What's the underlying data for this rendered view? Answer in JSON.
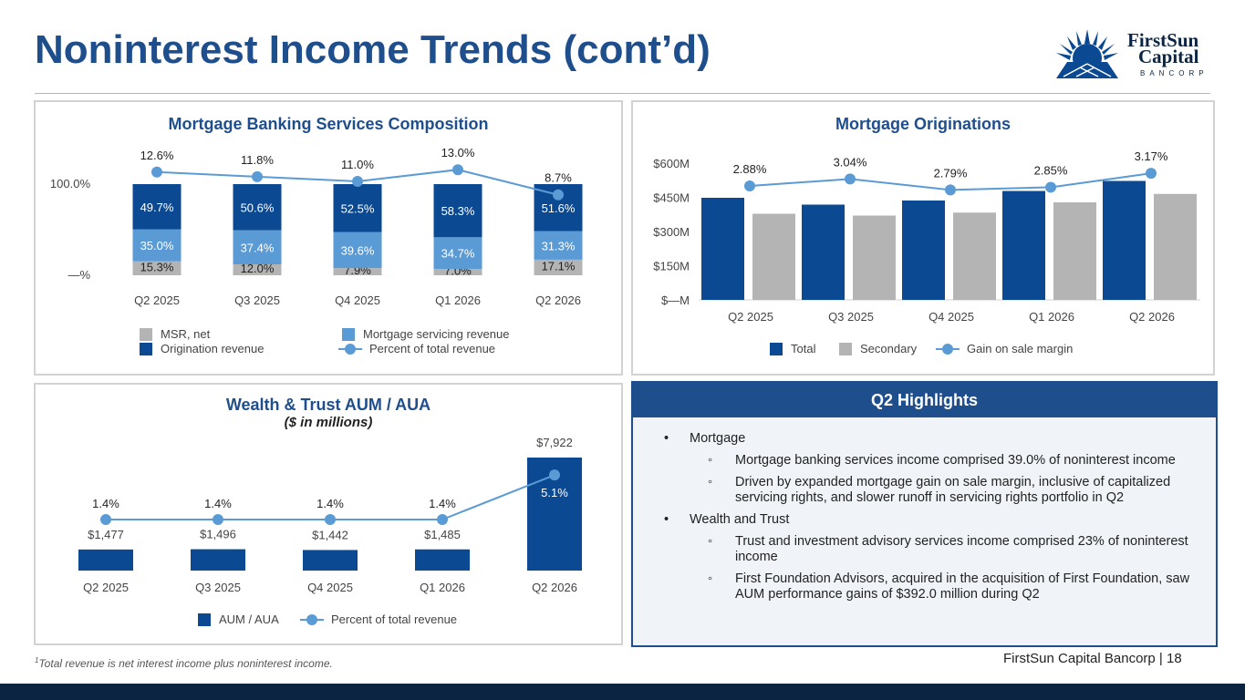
{
  "page": {
    "title": "Noninterest Income Trends (cont’d)",
    "logo": {
      "line1": "FirstSun",
      "line2": "Capital",
      "line3": "BANCORP"
    },
    "footnote_mark": "1",
    "footnote": "Total revenue is net interest income plus noninterest income.",
    "page_footer": "FirstSun Capital Bancorp  |  18"
  },
  "colors": {
    "navy": "#0b4a93",
    "light_blue": "#5b9bd5",
    "gray": "#b4b4b4",
    "title_blue": "#1f4e8c",
    "dark_bar": "#0b2442"
  },
  "highlights": {
    "title": "Q2 Highlights",
    "items": [
      {
        "text": "Mortgage",
        "sub": [
          "Mortgage banking services income comprised 39.0% of noninterest income",
          "Driven by expanded mortgage gain on sale margin, inclusive of capitalized servicing rights, and slower runoff in servicing rights portfolio in Q2"
        ]
      },
      {
        "text": "Wealth and Trust",
        "sub": [
          "Trust and investment advisory services income comprised 23% of noninterest income",
          "First Foundation Advisors, acquired in the acquisition of First Foundation, saw AUM performance gains of $392.0 million during Q2"
        ]
      }
    ]
  },
  "chart_data": [
    {
      "type": "bar",
      "stacked": true,
      "title": "Mortgage Banking Services Composition",
      "categories": [
        "Q2 2025",
        "Q3 2025",
        "Q4 2025",
        "Q1 2026",
        "Q2 2026"
      ],
      "yticks": [
        "100.0%",
        "—%"
      ],
      "series": [
        {
          "name": "MSR, net",
          "values": [
            15.3,
            12.0,
            7.9,
            7.0,
            17.1
          ],
          "labels": [
            "15.3%",
            "12.0%",
            "7.9%",
            "7.0%",
            "17.1%"
          ],
          "color": "#b4b4b4"
        },
        {
          "name": "Mortgage servicing revenue",
          "values": [
            35.0,
            37.4,
            39.6,
            34.7,
            31.3
          ],
          "labels": [
            "35.0%",
            "37.4%",
            "39.6%",
            "34.7%",
            "31.3%"
          ],
          "color": "#5b9bd5"
        },
        {
          "name": "Origination revenue",
          "values": [
            49.7,
            50.6,
            52.5,
            58.3,
            51.6
          ],
          "labels": [
            "49.7%",
            "50.6%",
            "52.5%",
            "58.3%",
            "51.6%"
          ],
          "color": "#0b4a93"
        }
      ],
      "line": {
        "name": "Percent of total revenue",
        "values": [
          12.6,
          11.8,
          11.0,
          13.0,
          8.7
        ],
        "labels": [
          "12.6%",
          "11.8%",
          "11.0%",
          "13.0%",
          "8.7%"
        ],
        "color": "#5b9bd5"
      },
      "legend": [
        "MSR, net",
        "Mortgage servicing revenue",
        "Origination revenue",
        "Percent of total revenue"
      ]
    },
    {
      "type": "bar",
      "title": "Mortgage Originations",
      "categories": [
        "Q2 2025",
        "Q3 2025",
        "Q4 2025",
        "Q1 2026",
        "Q2 2026"
      ],
      "ylim": [
        0,
        600
      ],
      "yticks": [
        {
          "value": 0,
          "label": "$—M"
        },
        {
          "value": 150,
          "label": "$150M"
        },
        {
          "value": 300,
          "label": "$300M"
        },
        {
          "value": 450,
          "label": "$450M"
        },
        {
          "value": 600,
          "label": "$600M"
        }
      ],
      "series": [
        {
          "name": "Total",
          "values": [
            448,
            418,
            436,
            478,
            522
          ],
          "color": "#0b4a93"
        },
        {
          "name": "Secondary",
          "values": [
            378,
            370,
            383,
            428,
            465
          ],
          "color": "#b4b4b4"
        }
      ],
      "line": {
        "name": "Gain on sale margin",
        "values": [
          2.88,
          3.04,
          2.79,
          2.85,
          3.17
        ],
        "labels": [
          "2.88%",
          "3.04%",
          "2.79%",
          "2.85%",
          "3.17%"
        ],
        "color": "#5b9bd5"
      },
      "legend": [
        "Total",
        "Secondary",
        "Gain on sale margin"
      ]
    },
    {
      "type": "bar",
      "title": "Wealth & Trust AUM / AUA",
      "subtitle": "($ in millions)",
      "categories": [
        "Q2 2025",
        "Q3 2025",
        "Q4 2025",
        "Q1 2026",
        "Q2 2026"
      ],
      "series": [
        {
          "name": "AUM / AUA",
          "values": [
            1477,
            1496,
            1442,
            1485,
            7922
          ],
          "labels": [
            "$1,477",
            "$1,496",
            "$1,442",
            "$1,485",
            "$7,922"
          ],
          "color": "#0b4a93"
        }
      ],
      "line": {
        "name": "Percent of total revenue",
        "values": [
          1.4,
          1.4,
          1.4,
          1.4,
          5.1
        ],
        "labels": [
          "1.4%",
          "1.4%",
          "1.4%",
          "1.4%",
          "5.1%"
        ],
        "color": "#5b9bd5"
      },
      "legend": [
        "AUM / AUA",
        "Percent of total revenue"
      ]
    }
  ]
}
